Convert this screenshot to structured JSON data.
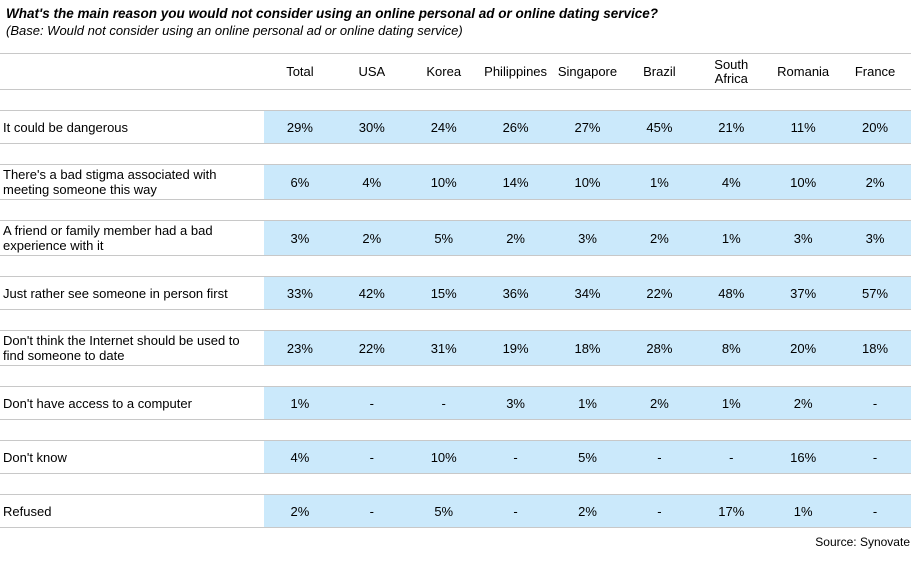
{
  "colors": {
    "highlight": "#cbe9fb",
    "border": "#c8c8c8"
  },
  "chart_data": {
    "type": "table",
    "title": "What's the main reason you would not consider using an online personal ad or online dating service?",
    "subtitle": "(Base: Would not consider using an online personal ad or online dating service)",
    "columns": [
      "Total",
      "USA",
      "Korea",
      "Philippines",
      "Singapore",
      "Brazil",
      "South Africa",
      "Romania",
      "France"
    ],
    "rows": [
      {
        "label": "It could be dangerous",
        "values": [
          "29%",
          "30%",
          "24%",
          "26%",
          "27%",
          "45%",
          "21%",
          "11%",
          "20%"
        ]
      },
      {
        "label": "There's a bad stigma associated with meeting someone this way",
        "values": [
          "6%",
          "4%",
          "10%",
          "14%",
          "10%",
          "1%",
          "4%",
          "10%",
          "2%"
        ]
      },
      {
        "label": "A friend or family member had a bad experience with it",
        "values": [
          "3%",
          "2%",
          "5%",
          "2%",
          "3%",
          "2%",
          "1%",
          "3%",
          "3%"
        ]
      },
      {
        "label": "Just rather see someone in person first",
        "values": [
          "33%",
          "42%",
          "15%",
          "36%",
          "34%",
          "22%",
          "48%",
          "37%",
          "57%"
        ]
      },
      {
        "label": "Don't think the Internet should be used to find someone to date",
        "values": [
          "23%",
          "22%",
          "31%",
          "19%",
          "18%",
          "28%",
          "8%",
          "20%",
          "18%"
        ]
      },
      {
        "label": "Don't have access to a computer",
        "values": [
          "1%",
          "-",
          "-",
          "3%",
          "1%",
          "2%",
          "1%",
          "2%",
          "-"
        ]
      },
      {
        "label": "Don't know",
        "values": [
          "4%",
          "-",
          "10%",
          "-",
          "5%",
          "-",
          "-",
          "16%",
          "-"
        ]
      },
      {
        "label": "Refused",
        "values": [
          "2%",
          "-",
          "5%",
          "-",
          "2%",
          "-",
          "17%",
          "1%",
          "-"
        ]
      }
    ],
    "source": "Source: Synovate"
  }
}
